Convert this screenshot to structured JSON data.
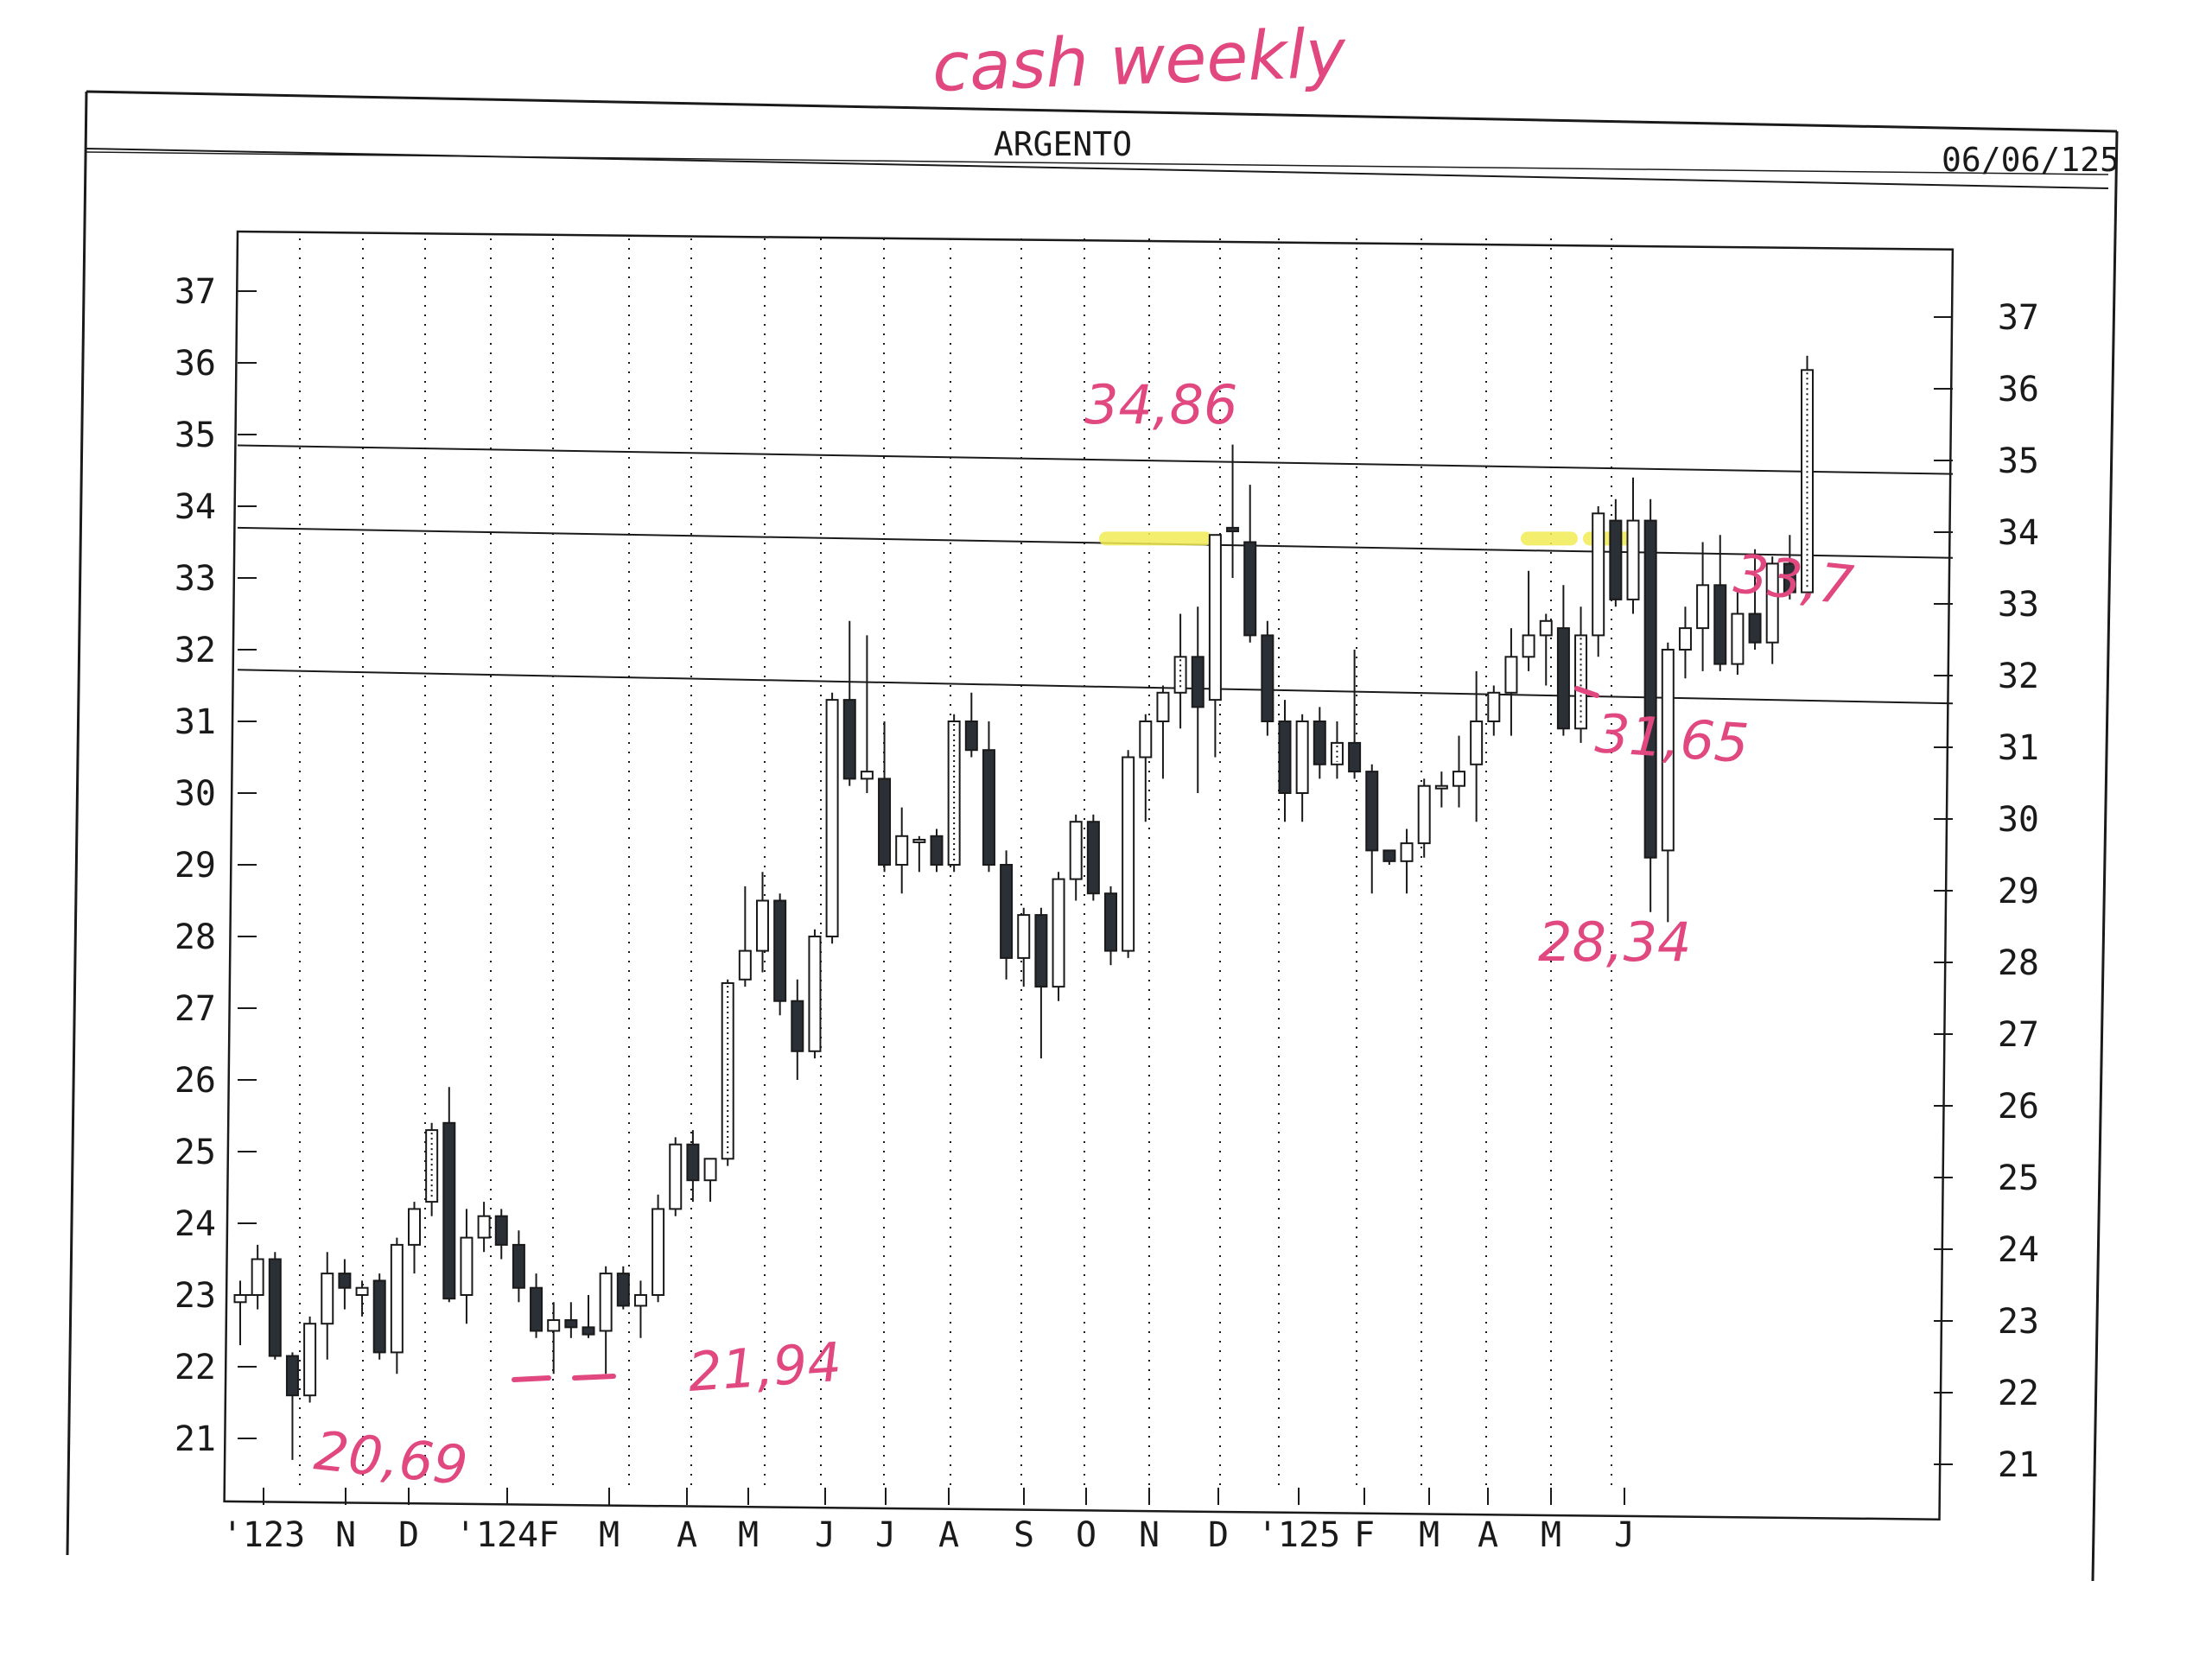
{
  "header": {
    "handwritten_title": "cash weekly",
    "instrument": "ARGENTO",
    "date": "06/06/125"
  },
  "colors": {
    "bearish": "#2b2f36",
    "bullish": "#ffffff",
    "annotation": "#e0487f",
    "highlight": "#f2ec54",
    "ink": "#1a1a1a"
  },
  "chart_data": {
    "type": "candlestick",
    "ylim": [
      20.6,
      37.5
    ],
    "left_axis_ticks": [
      "37",
      "36",
      "35",
      "34",
      "33",
      "32",
      "31",
      "30",
      "29",
      "28",
      "27",
      "26",
      "25",
      "24",
      "23",
      "22",
      "21"
    ],
    "right_axis_ticks": [
      "37",
      "36",
      "35",
      "34",
      "33",
      "32",
      "31",
      "30",
      "29",
      "28",
      "27",
      "26",
      "25",
      "24",
      "23",
      "22",
      "21"
    ],
    "month_labels": [
      "'123",
      "N",
      "D",
      "'124F",
      "M",
      "A",
      "M",
      "J",
      "J",
      "A",
      "S",
      "O",
      "N",
      "D",
      "'125",
      "F",
      "M",
      "A",
      "M",
      "J"
    ],
    "horizontal_lines": [
      {
        "left": 34.85,
        "right": 34.45
      },
      {
        "left": 33.7,
        "right": 33.28
      },
      {
        "left": 31.72,
        "right": 31.25
      }
    ],
    "candles": [
      {
        "o": 22.9,
        "h": 23.2,
        "l": 22.3,
        "c": 23.0
      },
      {
        "o": 23.0,
        "h": 23.7,
        "l": 22.8,
        "c": 23.5
      },
      {
        "o": 23.5,
        "h": 23.6,
        "l": 22.1,
        "c": 22.15
      },
      {
        "o": 22.15,
        "h": 22.2,
        "l": 20.7,
        "c": 21.6
      },
      {
        "o": 21.6,
        "h": 22.7,
        "l": 21.5,
        "c": 22.6
      },
      {
        "o": 22.6,
        "h": 23.6,
        "l": 22.1,
        "c": 23.3
      },
      {
        "o": 23.3,
        "h": 23.5,
        "l": 22.8,
        "c": 23.1
      },
      {
        "o": 23.0,
        "h": 23.2,
        "l": 22.7,
        "c": 23.1
      },
      {
        "o": 23.2,
        "h": 23.3,
        "l": 22.1,
        "c": 22.2
      },
      {
        "o": 22.2,
        "h": 23.8,
        "l": 21.9,
        "c": 23.7
      },
      {
        "o": 23.7,
        "h": 24.3,
        "l": 23.3,
        "c": 24.2
      },
      {
        "o": 24.3,
        "h": 25.4,
        "l": 24.1,
        "c": 25.3,
        "dotted": true
      },
      {
        "o": 25.4,
        "h": 25.9,
        "l": 22.9,
        "c": 22.95
      },
      {
        "o": 23.0,
        "h": 24.2,
        "l": 22.6,
        "c": 23.8
      },
      {
        "o": 23.8,
        "h": 24.3,
        "l": 23.6,
        "c": 24.1
      },
      {
        "o": 24.1,
        "h": 24.2,
        "l": 23.5,
        "c": 23.7
      },
      {
        "o": 23.7,
        "h": 23.9,
        "l": 22.9,
        "c": 23.1
      },
      {
        "o": 23.1,
        "h": 23.3,
        "l": 22.4,
        "c": 22.5
      },
      {
        "o": 22.5,
        "h": 22.9,
        "l": 21.9,
        "c": 22.65
      },
      {
        "o": 22.65,
        "h": 22.9,
        "l": 22.4,
        "c": 22.55
      },
      {
        "o": 22.55,
        "h": 23.0,
        "l": 22.4,
        "c": 22.45
      },
      {
        "o": 22.5,
        "h": 23.4,
        "l": 21.9,
        "c": 23.3
      },
      {
        "o": 23.3,
        "h": 23.4,
        "l": 22.8,
        "c": 22.85
      },
      {
        "o": 22.85,
        "h": 23.2,
        "l": 22.4,
        "c": 23.0
      },
      {
        "o": 23.0,
        "h": 24.4,
        "l": 22.9,
        "c": 24.2
      },
      {
        "o": 24.2,
        "h": 25.2,
        "l": 24.1,
        "c": 25.1
      },
      {
        "o": 25.1,
        "h": 25.3,
        "l": 24.3,
        "c": 24.6
      },
      {
        "o": 24.6,
        "h": 24.9,
        "l": 24.3,
        "c": 24.9
      },
      {
        "o": 24.9,
        "h": 27.4,
        "l": 24.8,
        "c": 27.35,
        "dotted": true
      },
      {
        "o": 27.4,
        "h": 28.7,
        "l": 27.3,
        "c": 27.8
      },
      {
        "o": 27.8,
        "h": 28.9,
        "l": 27.5,
        "c": 28.5
      },
      {
        "o": 28.5,
        "h": 28.6,
        "l": 26.9,
        "c": 27.1
      },
      {
        "o": 27.1,
        "h": 27.4,
        "l": 26.0,
        "c": 26.4
      },
      {
        "o": 26.4,
        "h": 28.1,
        "l": 26.3,
        "c": 28.0
      },
      {
        "o": 28.0,
        "h": 31.4,
        "l": 27.9,
        "c": 31.3
      },
      {
        "o": 31.3,
        "h": 32.4,
        "l": 30.1,
        "c": 30.2
      },
      {
        "o": 30.2,
        "h": 32.2,
        "l": 30.0,
        "c": 30.3
      },
      {
        "o": 30.2,
        "h": 31.0,
        "l": 28.9,
        "c": 29.0
      },
      {
        "o": 29.0,
        "h": 29.8,
        "l": 28.6,
        "c": 29.4
      },
      {
        "o": 29.35,
        "h": 29.4,
        "l": 28.9,
        "c": 29.35
      },
      {
        "o": 29.4,
        "h": 29.5,
        "l": 28.9,
        "c": 29.0
      },
      {
        "o": 29.0,
        "h": 31.1,
        "l": 28.9,
        "c": 31.0,
        "dotted": true
      },
      {
        "o": 31.0,
        "h": 31.4,
        "l": 30.5,
        "c": 30.6
      },
      {
        "o": 30.6,
        "h": 31.0,
        "l": 28.9,
        "c": 29.0
      },
      {
        "o": 29.0,
        "h": 29.2,
        "l": 27.4,
        "c": 27.7
      },
      {
        "o": 27.7,
        "h": 28.4,
        "l": 27.3,
        "c": 28.3
      },
      {
        "o": 28.3,
        "h": 28.4,
        "l": 26.3,
        "c": 27.3
      },
      {
        "o": 27.3,
        "h": 28.9,
        "l": 27.1,
        "c": 28.8
      },
      {
        "o": 28.8,
        "h": 29.7,
        "l": 28.5,
        "c": 29.6
      },
      {
        "o": 29.6,
        "h": 29.7,
        "l": 28.5,
        "c": 28.6
      },
      {
        "o": 28.6,
        "h": 28.7,
        "l": 27.6,
        "c": 27.8
      },
      {
        "o": 27.8,
        "h": 30.6,
        "l": 27.7,
        "c": 30.5
      },
      {
        "o": 30.5,
        "h": 31.1,
        "l": 29.6,
        "c": 31.0
      },
      {
        "o": 31.0,
        "h": 31.5,
        "l": 30.2,
        "c": 31.4
      },
      {
        "o": 31.4,
        "h": 32.5,
        "l": 30.9,
        "c": 31.9,
        "dotted": true
      },
      {
        "o": 31.9,
        "h": 32.6,
        "l": 30.0,
        "c": 31.2
      },
      {
        "o": 31.3,
        "h": 33.6,
        "l": 30.5,
        "c": 33.6
      },
      {
        "o": 33.7,
        "h": 34.86,
        "l": 33.0,
        "c": 33.65
      },
      {
        "o": 33.5,
        "h": 34.3,
        "l": 32.1,
        "c": 32.2
      },
      {
        "o": 32.2,
        "h": 32.4,
        "l": 30.8,
        "c": 31.0
      },
      {
        "o": 31.0,
        "h": 31.3,
        "l": 29.6,
        "c": 30.0
      },
      {
        "o": 30.0,
        "h": 31.1,
        "l": 29.6,
        "c": 31.0
      },
      {
        "o": 31.0,
        "h": 31.2,
        "l": 30.2,
        "c": 30.4
      },
      {
        "o": 30.4,
        "h": 31.0,
        "l": 30.2,
        "c": 30.7,
        "dotted": true
      },
      {
        "o": 30.7,
        "h": 32.0,
        "l": 30.2,
        "c": 30.3
      },
      {
        "o": 30.3,
        "h": 30.4,
        "l": 28.6,
        "c": 29.2
      },
      {
        "o": 29.2,
        "h": 29.2,
        "l": 29.0,
        "c": 29.05
      },
      {
        "o": 29.05,
        "h": 29.5,
        "l": 28.6,
        "c": 29.3
      },
      {
        "o": 29.3,
        "h": 30.2,
        "l": 29.1,
        "c": 30.1
      },
      {
        "o": 30.1,
        "h": 30.3,
        "l": 29.8,
        "c": 30.1
      },
      {
        "o": 30.1,
        "h": 30.8,
        "l": 29.8,
        "c": 30.3
      },
      {
        "o": 30.4,
        "h": 31.7,
        "l": 29.6,
        "c": 31.0
      },
      {
        "o": 31.0,
        "h": 31.5,
        "l": 30.8,
        "c": 31.4
      },
      {
        "o": 31.4,
        "h": 32.3,
        "l": 30.8,
        "c": 31.9
      },
      {
        "o": 31.9,
        "h": 33.1,
        "l": 31.7,
        "c": 32.2
      },
      {
        "o": 32.2,
        "h": 32.5,
        "l": 31.5,
        "c": 32.4
      },
      {
        "o": 32.3,
        "h": 32.9,
        "l": 30.8,
        "c": 30.9
      },
      {
        "o": 30.9,
        "h": 32.6,
        "l": 30.7,
        "c": 32.2,
        "dotted": true
      },
      {
        "o": 32.2,
        "h": 34.0,
        "l": 31.9,
        "c": 33.9
      },
      {
        "o": 33.8,
        "h": 34.1,
        "l": 32.6,
        "c": 32.7
      },
      {
        "o": 32.7,
        "h": 34.4,
        "l": 32.5,
        "c": 33.8
      },
      {
        "o": 33.8,
        "h": 34.1,
        "l": 28.34,
        "c": 29.1
      },
      {
        "o": 29.2,
        "h": 32.1,
        "l": 28.2,
        "c": 32.0
      },
      {
        "o": 32.0,
        "h": 32.6,
        "l": 31.6,
        "c": 32.3
      },
      {
        "o": 32.3,
        "h": 33.5,
        "l": 31.7,
        "c": 32.9
      },
      {
        "o": 32.9,
        "h": 33.6,
        "l": 31.7,
        "c": 31.8
      },
      {
        "o": 31.8,
        "h": 32.8,
        "l": 31.65,
        "c": 32.5
      },
      {
        "o": 32.5,
        "h": 33.4,
        "l": 32.0,
        "c": 32.1
      },
      {
        "o": 32.1,
        "h": 33.3,
        "l": 31.8,
        "c": 33.2
      },
      {
        "o": 33.2,
        "h": 33.6,
        "l": 32.7,
        "c": 32.8
      },
      {
        "o": 32.8,
        "h": 36.1,
        "l": 32.7,
        "c": 35.9,
        "dotted": true
      }
    ],
    "annotations": [
      "34,86",
      "33,7",
      "31,65",
      "28,34",
      "21,94",
      "20,69"
    ]
  }
}
